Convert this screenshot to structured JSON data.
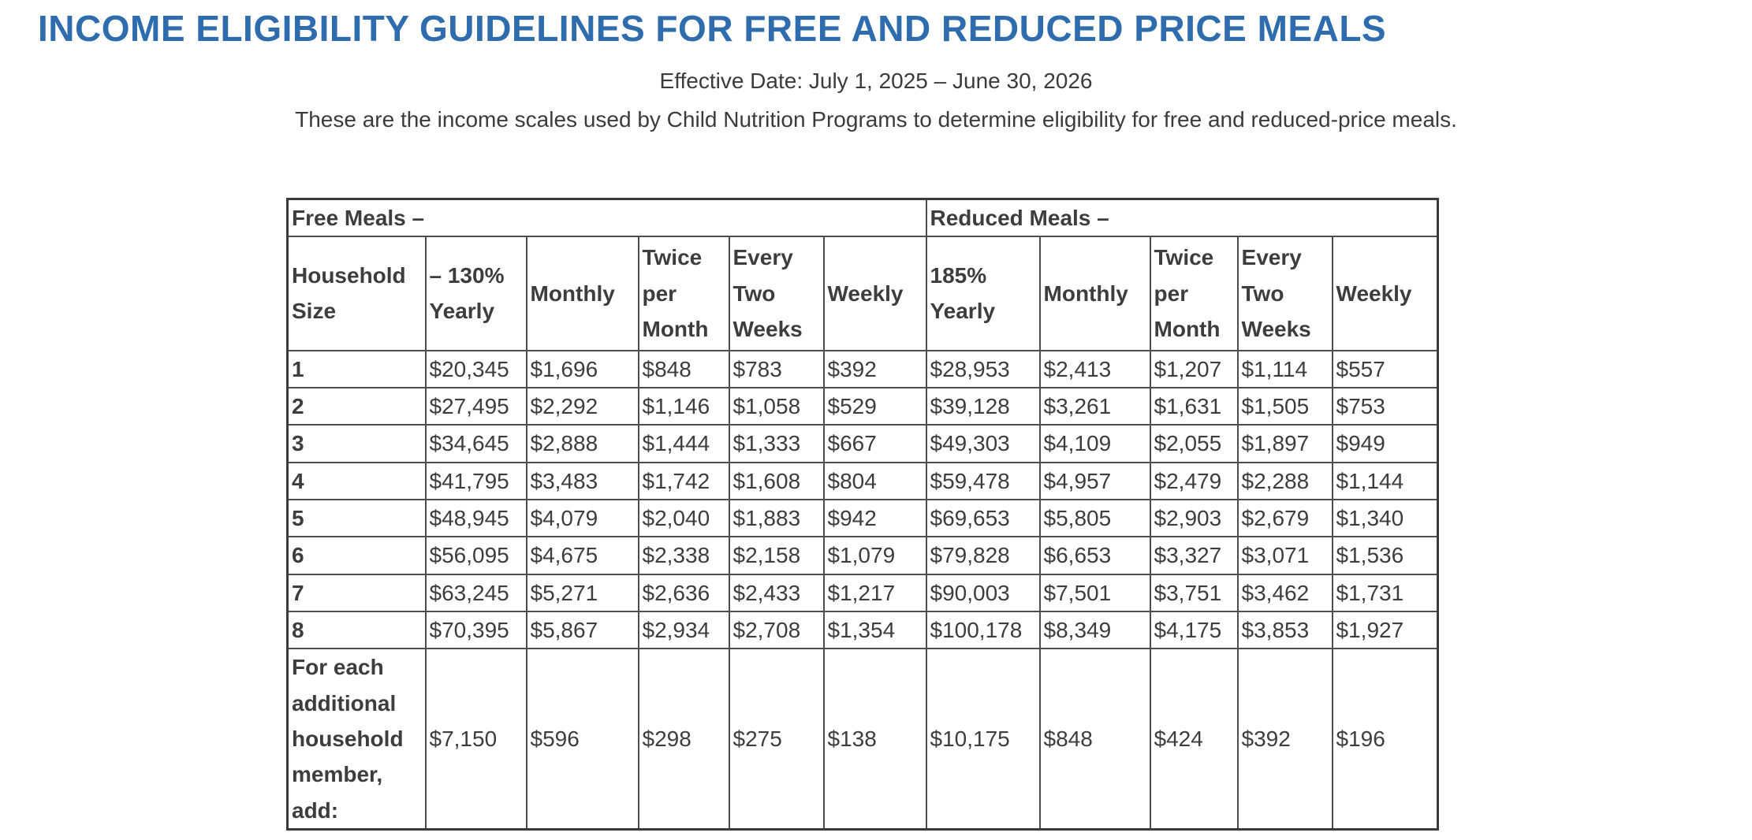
{
  "page": {
    "title": "INCOME ELIGIBILITY GUIDELINES FOR FREE AND REDUCED PRICE MEALS",
    "effective_date": "Effective Date: July 1, 2025 – June 30, 2026",
    "intro": "These are the income scales used by Child Nutrition Programs to determine eligibility for free and reduced-price meals."
  },
  "colors": {
    "title_blue": "#2f6cae",
    "body_text": "#3b3b3b",
    "table_border": "#4d4d4d"
  },
  "table": {
    "group_headers": [
      {
        "label": "Free Meals –",
        "colspan": 6
      },
      {
        "label": "Reduced Meals –",
        "colspan": 5
      }
    ],
    "column_headers": [
      "Household Size",
      "– 130% Yearly",
      "Monthly",
      "Twice per Month",
      "Every Two Weeks",
      "Weekly",
      "185% Yearly",
      "Monthly",
      "Twice per Month",
      "Every Two Weeks",
      "Weekly"
    ],
    "rows": [
      [
        "1",
        "$20,345",
        "$1,696",
        "$848",
        "$783",
        "$392",
        "$28,953",
        "$2,413",
        "$1,207",
        "$1,114",
        "$557"
      ],
      [
        "2",
        "$27,495",
        "$2,292",
        "$1,146",
        "$1,058",
        "$529",
        "$39,128",
        "$3,261",
        "$1,631",
        "$1,505",
        "$753"
      ],
      [
        "3",
        "$34,645",
        "$2,888",
        "$1,444",
        "$1,333",
        "$667",
        "$49,303",
        "$4,109",
        "$2,055",
        "$1,897",
        "$949"
      ],
      [
        "4",
        "$41,795",
        "$3,483",
        "$1,742",
        "$1,608",
        "$804",
        "$59,478",
        "$4,957",
        "$2,479",
        "$2,288",
        "$1,144"
      ],
      [
        "5",
        "$48,945",
        "$4,079",
        "$2,040",
        "$1,883",
        "$942",
        "$69,653",
        "$5,805",
        "$2,903",
        "$2,679",
        "$1,340"
      ],
      [
        "6",
        "$56,095",
        "$4,675",
        "$2,338",
        "$2,158",
        "$1,079",
        "$79,828",
        "$6,653",
        "$3,327",
        "$3,071",
        "$1,536"
      ],
      [
        "7",
        "$63,245",
        "$5,271",
        "$2,636",
        "$2,433",
        "$1,217",
        "$90,003",
        "$7,501",
        "$3,751",
        "$3,462",
        "$1,731"
      ],
      [
        "8",
        "$70,395",
        "$5,867",
        "$2,934",
        "$2,708",
        "$1,354",
        "$100,178",
        "$8,349",
        "$4,175",
        "$3,853",
        "$1,927"
      ],
      [
        "For each additional household member, add:",
        "$7,150",
        "$596",
        "$298",
        "$275",
        "$138",
        "$10,175",
        "$848",
        "$424",
        "$392",
        "$196"
      ]
    ]
  }
}
